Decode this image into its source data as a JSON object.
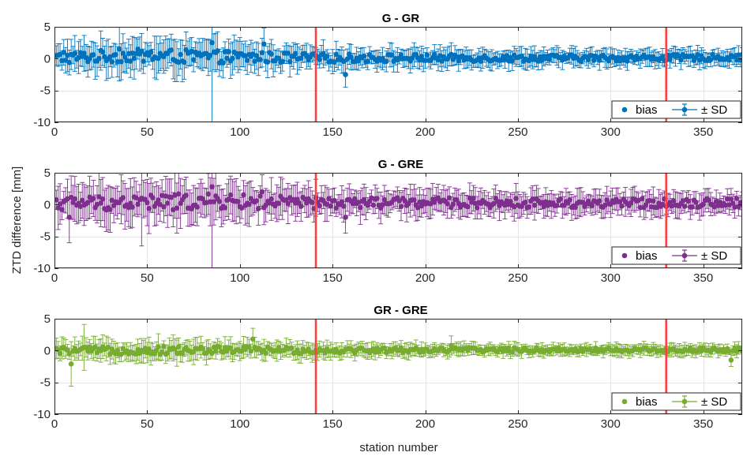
{
  "figure": {
    "ylabel": "ZTD difference [mm]",
    "xlabel": "station number"
  },
  "chart_data": [
    {
      "type": "scatter",
      "title": "G - GR",
      "color": "#0072BD",
      "xlim": [
        0,
        371
      ],
      "ylim": [
        -10,
        5
      ],
      "xticks": [
        0,
        50,
        100,
        150,
        200,
        250,
        300,
        350
      ],
      "yticks": [
        -10,
        -5,
        0,
        5
      ],
      "grid": true,
      "legend": {
        "placement": "bottom-right",
        "entries": [
          "bias",
          "± SD"
        ]
      },
      "vlines": {
        "x": [
          141,
          330
        ],
        "color": "#FF4040"
      },
      "bias_trend": [
        [
          0,
          0.1
        ],
        [
          40,
          0.5
        ],
        [
          80,
          0.3
        ],
        [
          140,
          0.1
        ],
        [
          200,
          0.1
        ],
        [
          300,
          0.1
        ],
        [
          371,
          0.2
        ]
      ],
      "sd_trend": [
        [
          0,
          2.0
        ],
        [
          60,
          2.5
        ],
        [
          130,
          1.8
        ],
        [
          150,
          1.5
        ],
        [
          250,
          1.2
        ],
        [
          371,
          1.1
        ]
      ],
      "highlight_points": [
        {
          "x": 5,
          "bias": 1.0,
          "sd": 2.0
        },
        {
          "x": 35,
          "bias": 1.5,
          "sd": 5.0
        },
        {
          "x": 85,
          "bias": 2.5,
          "sd": 13.0
        },
        {
          "x": 113,
          "bias": 2.3,
          "sd": 2.5
        },
        {
          "x": 157,
          "bias": -2.5,
          "sd": 2.0
        },
        {
          "x": 365,
          "bias": 0.5,
          "sd": 1.0
        }
      ]
    },
    {
      "type": "scatter",
      "title": "G - GRE",
      "color": "#7E2F8E",
      "xlim": [
        0,
        371
      ],
      "ylim": [
        -10,
        5
      ],
      "xticks": [
        0,
        50,
        100,
        150,
        200,
        250,
        300,
        350
      ],
      "yticks": [
        -10,
        -5,
        0,
        5
      ],
      "grid": true,
      "legend": {
        "placement": "bottom-right",
        "entries": [
          "bias",
          "± SD"
        ]
      },
      "vlines": {
        "x": [
          141,
          330
        ],
        "color": "#FF4040"
      },
      "bias_trend": [
        [
          0,
          0.2
        ],
        [
          40,
          0.3
        ],
        [
          90,
          0.5
        ],
        [
          140,
          0.2
        ],
        [
          200,
          0.3
        ],
        [
          300,
          0.2
        ],
        [
          371,
          0.3
        ]
      ],
      "sd_trend": [
        [
          0,
          2.5
        ],
        [
          60,
          3.0
        ],
        [
          130,
          2.3
        ],
        [
          150,
          2.0
        ],
        [
          250,
          1.7
        ],
        [
          371,
          1.6
        ]
      ],
      "highlight_points": [
        {
          "x": 8,
          "bias": -2.0,
          "sd": 4.0
        },
        {
          "x": 47,
          "bias": 1.0,
          "sd": 7.5
        },
        {
          "x": 85,
          "bias": 2.8,
          "sd": 13.0
        },
        {
          "x": 112,
          "bias": 2.0,
          "sd": 2.7
        },
        {
          "x": 157,
          "bias": -2.0,
          "sd": 2.5
        },
        {
          "x": 226,
          "bias": 1.0,
          "sd": 2.0
        }
      ]
    },
    {
      "type": "scatter",
      "title": "GR - GRE",
      "color": "#77AC30",
      "xlim": [
        0,
        371
      ],
      "ylim": [
        -10,
        5
      ],
      "xticks": [
        0,
        50,
        100,
        150,
        200,
        250,
        300,
        350
      ],
      "yticks": [
        -10,
        -5,
        0,
        5
      ],
      "grid": true,
      "legend": {
        "placement": "bottom-right",
        "entries": [
          "bias",
          "± SD"
        ]
      },
      "vlines": {
        "x": [
          141,
          330
        ],
        "color": "#FF4040"
      },
      "bias_trend": [
        [
          0,
          0.0
        ],
        [
          50,
          0.0
        ],
        [
          100,
          0.1
        ],
        [
          140,
          0.0
        ],
        [
          200,
          0.1
        ],
        [
          300,
          0.1
        ],
        [
          371,
          0.1
        ]
      ],
      "sd_trend": [
        [
          0,
          1.3
        ],
        [
          60,
          1.5
        ],
        [
          130,
          1.2
        ],
        [
          150,
          1.0
        ],
        [
          250,
          0.8
        ],
        [
          371,
          0.8
        ]
      ],
      "highlight_points": [
        {
          "x": 9,
          "bias": -2.1,
          "sd": 3.5
        },
        {
          "x": 16,
          "bias": 0.5,
          "sd": 3.6
        },
        {
          "x": 107,
          "bias": 1.8,
          "sd": 1.7
        },
        {
          "x": 214,
          "bias": 0.8,
          "sd": 1.5
        },
        {
          "x": 365,
          "bias": -1.5,
          "sd": 1.0
        }
      ]
    }
  ]
}
